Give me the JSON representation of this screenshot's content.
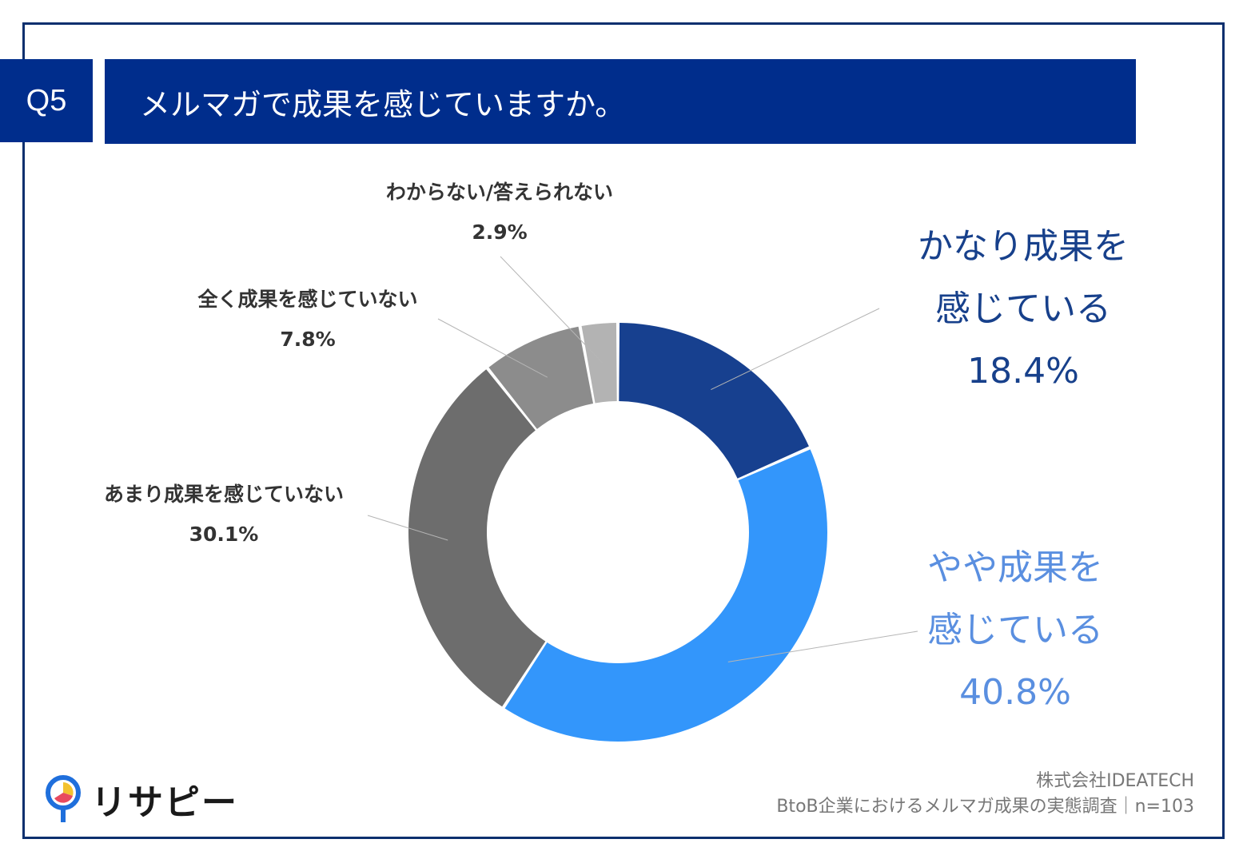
{
  "question": {
    "number": "Q5",
    "title": "メルマガで成果を感じていますか。"
  },
  "chart_data": {
    "type": "pie",
    "style": "donut",
    "start": "12 o'clock, clockwise",
    "categories": [
      "かなり成果を感じている",
      "やや成果を感じている",
      "あまり成果を感じていない",
      "全く成果を感じていない",
      "わからない/答えられない"
    ],
    "values": [
      18.4,
      40.8,
      30.1,
      7.8,
      2.9
    ],
    "unit": "%",
    "colors": [
      "#17408f",
      "#3396fb",
      "#6d6d6d",
      "#8c8c8c",
      "#b3b3b3"
    ],
    "labels": [
      {
        "line1": "かなり成果を",
        "line2": "感じている",
        "pct": "18.4%"
      },
      {
        "line1": "やや成果を",
        "line2": "感じている",
        "pct": "40.8%"
      },
      {
        "line1": "あまり成果を感じていない",
        "pct": "30.1%"
      },
      {
        "line1": "全く成果を感じていない",
        "pct": "7.8%"
      },
      {
        "line1": "わからない/答えられない",
        "pct": "2.9%"
      }
    ]
  },
  "source": {
    "company": "株式会社IDEATECH",
    "survey": "BtoB企業におけるメルマガ成果の実態調査｜n=103"
  },
  "logo": {
    "text": "リサピー",
    "colors": [
      "#1f6fdc",
      "#f2c230",
      "#e84a5f"
    ]
  }
}
